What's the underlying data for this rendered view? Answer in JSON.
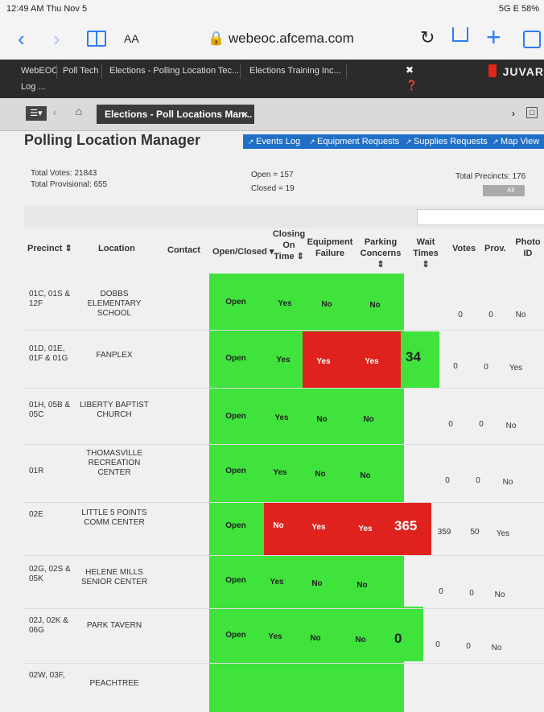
{
  "status_bar": {
    "time": "12:49 AM  Thu Nov 5",
    "right": "5G E 58%"
  },
  "browser": {
    "aa": "AA",
    "url": "webeoc.afcema.com"
  },
  "app_nav": {
    "items": [
      "WebEOC",
      "Poll Tech",
      "Elections - Polling Location Tec...",
      "Elections Training Inc...",
      "Log ..."
    ],
    "brand": "JUVAR"
  },
  "tabbar": {
    "tab_label": "Elections - Poll Locations Man...",
    "close": "×"
  },
  "page": {
    "title": "Polling Location Manager",
    "buttons": [
      "Events Log",
      "Equipment Requests",
      "Supplies Requests",
      "Map View"
    ]
  },
  "summary": {
    "total_votes": "Total Votes: 21843",
    "total_provisional": "Total Provisional: 655",
    "open": "Open = 157",
    "closed": "Closed = 19",
    "total_precincts": "Total Precincts: 176",
    "filter_value": "All"
  },
  "table": {
    "headers": {
      "precinct": "Precinct ⇕",
      "location": "Location",
      "contact": "Contact",
      "open_closed": "Open/Closed ▾",
      "closing": [
        "Closing",
        "On",
        "Time ⇕"
      ],
      "equipment": [
        "Equipment",
        "Failure"
      ],
      "parking": [
        "Parking",
        "Concerns ⇕"
      ],
      "wait": [
        "Wait",
        "Times ⇕"
      ],
      "votes": "Votes",
      "prov": "Prov.",
      "photo": [
        "Photo",
        "ID"
      ]
    },
    "rows": [
      {
        "precinct": [
          "01C, 01S &",
          "12F"
        ],
        "location": [
          "DOBBS ELEMENTARY",
          "SCHOOL"
        ],
        "open": "Open",
        "closing": "Yes",
        "equipment": "No",
        "parking": "No",
        "wait": "",
        "votes": "0",
        "prov": "0",
        "photo": "No"
      },
      {
        "precinct": [
          "01D, 01E,",
          "01F & 01G"
        ],
        "location": [
          "FANPLEX"
        ],
        "open": "Open",
        "closing": "Yes",
        "equipment": "Yes",
        "parking": "Yes",
        "wait": "34",
        "votes": "0",
        "prov": "0",
        "photo": "Yes"
      },
      {
        "precinct": [
          "01H, 05B &",
          "05C"
        ],
        "location": [
          "LIBERTY BAPTIST",
          "CHURCH"
        ],
        "open": "Open",
        "closing": "Yes",
        "equipment": "No",
        "parking": "No",
        "wait": "",
        "votes": "0",
        "prov": "0",
        "photo": "No"
      },
      {
        "precinct": [
          "01R"
        ],
        "location": [
          "THOMASVILLE",
          "RECREATION",
          "CENTER"
        ],
        "open": "Open",
        "closing": "Yes",
        "equipment": "No",
        "parking": "No",
        "wait": "",
        "votes": "0",
        "prov": "0",
        "photo": "No"
      },
      {
        "precinct": [
          "02E"
        ],
        "location": [
          "LITTLE 5 POINTS",
          "COMM CENTER"
        ],
        "open": "Open",
        "closing": "No",
        "equipment": "Yes",
        "parking": "Yes",
        "wait": "365",
        "votes": "359",
        "prov": "50",
        "photo": "Yes"
      },
      {
        "precinct": [
          "02G, 02S &",
          "05K"
        ],
        "location": [
          "HELENE MILLS",
          "SENIOR CENTER"
        ],
        "open": "Open",
        "closing": "Yes",
        "equipment": "No",
        "parking": "No",
        "wait": "",
        "votes": "0",
        "prov": "0",
        "photo": "No"
      },
      {
        "precinct": [
          "02J, 02K &",
          "06G"
        ],
        "location": [
          "PARK TAVERN"
        ],
        "open": "Open",
        "closing": "Yes",
        "equipment": "No",
        "parking": "No",
        "wait": "0",
        "votes": "0",
        "prov": "0",
        "photo": "No"
      },
      {
        "precinct": [
          "02W, 03F,"
        ],
        "location": [
          "PEACHTREE"
        ],
        "open": "",
        "closing": "",
        "equipment": "",
        "parking": "",
        "wait": "",
        "votes": "",
        "prov": "",
        "photo": ""
      }
    ]
  },
  "colors": {
    "ok": "#3fe33c",
    "alert": "#e0221e",
    "button": "#1f6fc6"
  }
}
